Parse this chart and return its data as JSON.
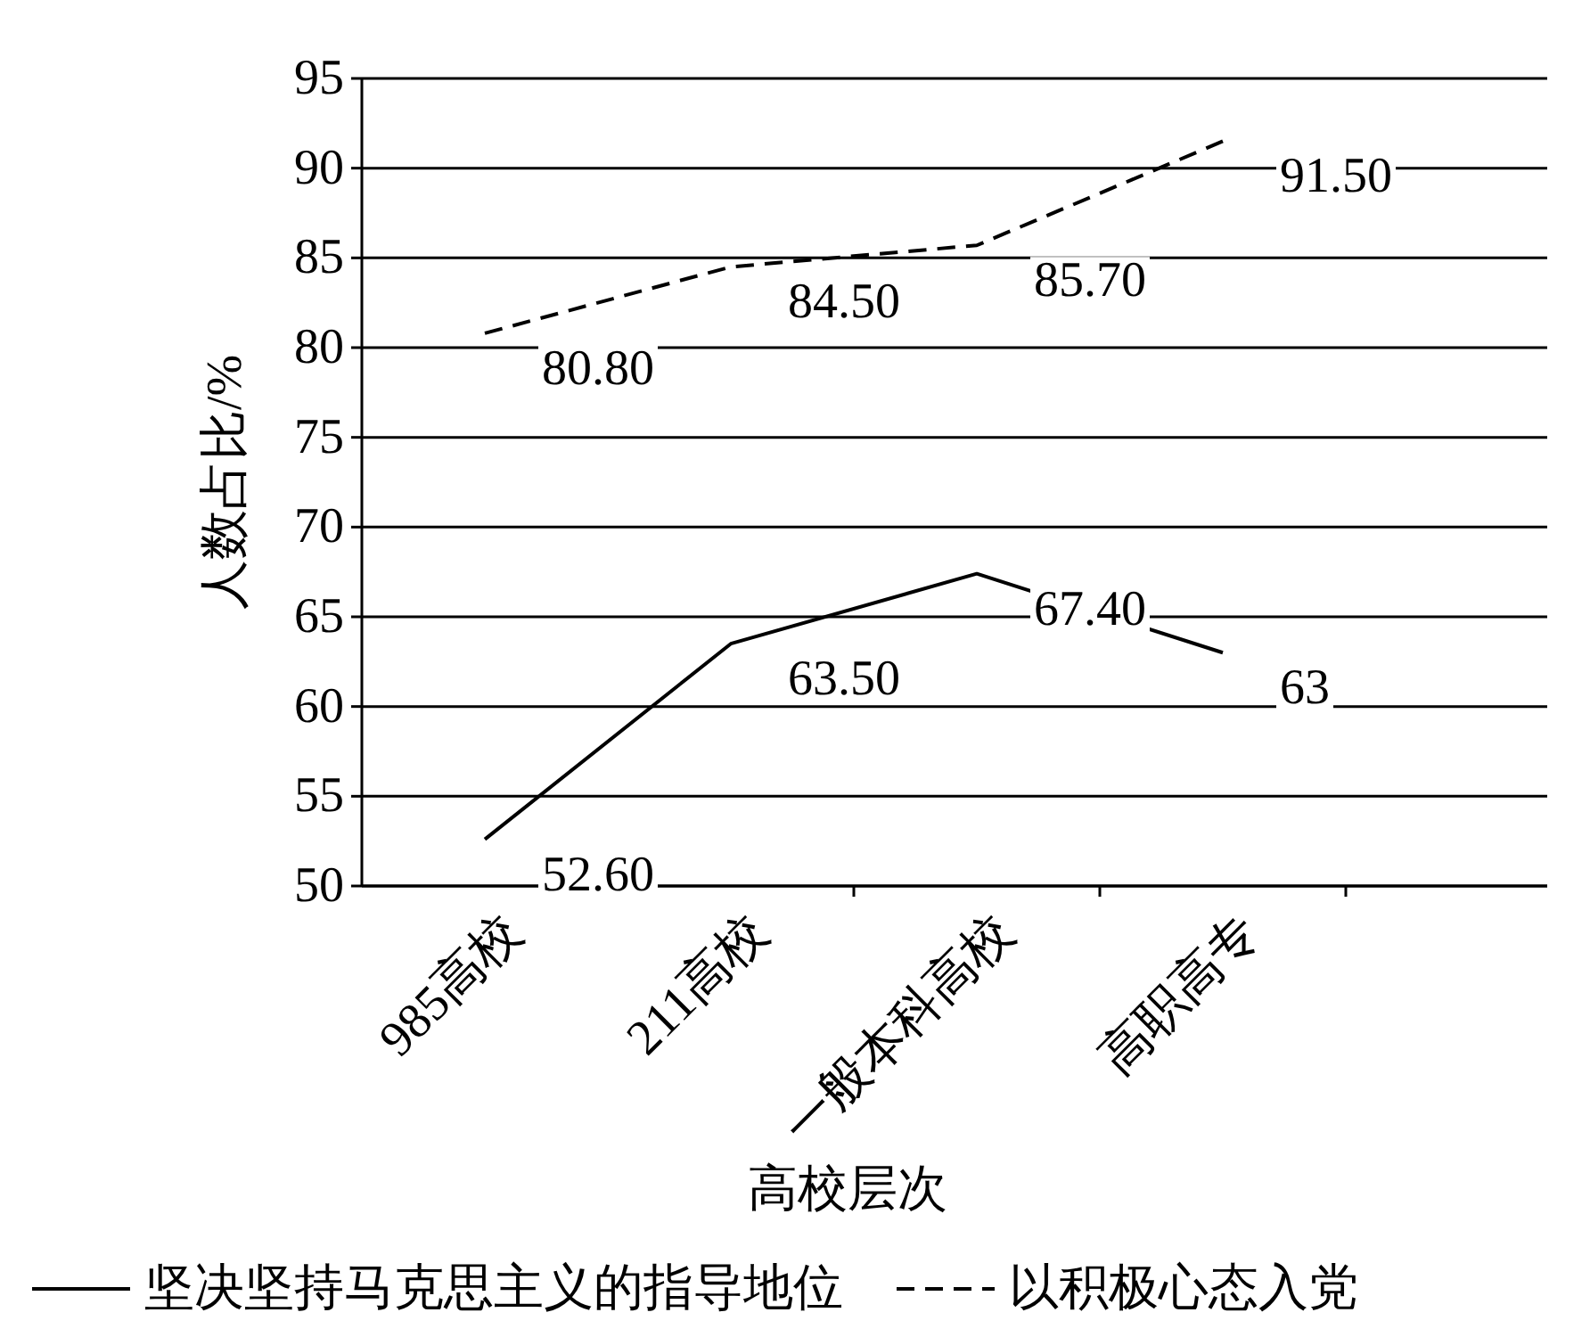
{
  "chart_data": {
    "type": "line",
    "ylabel": "人数占比/%",
    "xlabel": "高校层次",
    "categories": [
      "985高校",
      "211高校",
      "一般本科高校",
      "高职高专"
    ],
    "series": [
      {
        "name": "坚决坚持马克思主义的指导地位",
        "color": "#000000",
        "line_style": "solid",
        "values": [
          52.6,
          63.5,
          67.4,
          63
        ],
        "value_labels": [
          "52.60",
          "63.50",
          "67.40",
          "63"
        ]
      },
      {
        "name": "以积极心态入党",
        "color": "#000000",
        "line_style": "dashed",
        "values": [
          80.8,
          84.5,
          85.7,
          91.5
        ],
        "value_labels": [
          "80.80",
          "84.50",
          "85.70",
          "91.50"
        ]
      }
    ],
    "ylim": [
      50,
      95
    ],
    "yticks": [
      50,
      55,
      60,
      65,
      70,
      75,
      80,
      85,
      90,
      95
    ],
    "grid": "y",
    "legend": "bottom",
    "marker": "none"
  }
}
